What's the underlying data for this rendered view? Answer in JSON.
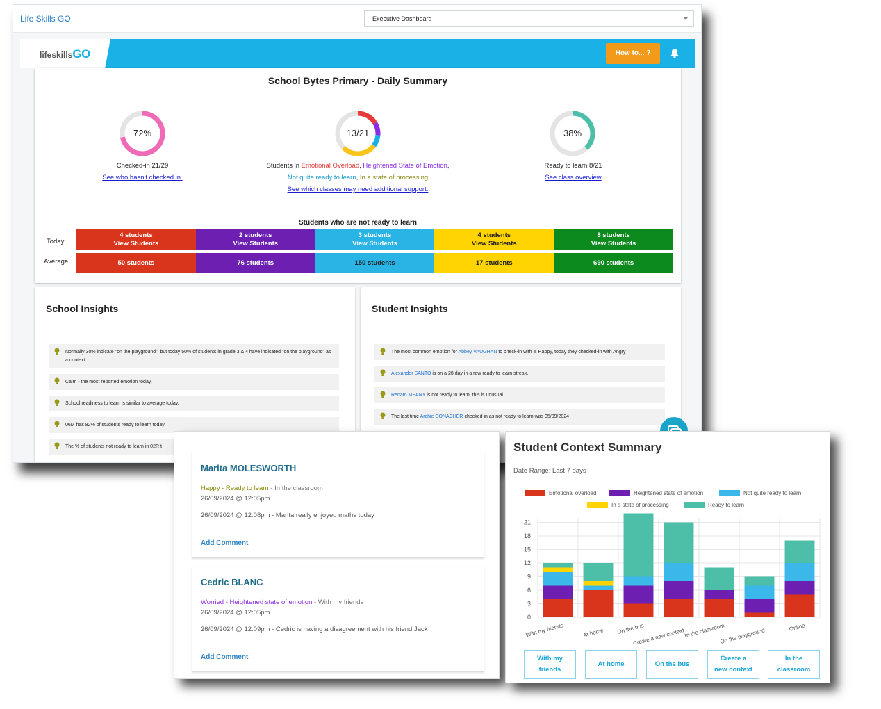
{
  "topbar": {
    "brand": "Life Skills GO",
    "dashboard_select": "Executive Dashboard"
  },
  "navbar": {
    "logo_prefix": "lifeskills",
    "logo_suffix": "GO",
    "howto_label": "How to... ?"
  },
  "summary": {
    "title": "School Bytes Primary - Daily Summary",
    "checked_in": {
      "pct_label": "72%",
      "fraction": 0.72,
      "caption": "Checked-in 21/29",
      "link": "See who hasn't checked in."
    },
    "emotions": {
      "center_label": "13/21",
      "caption_prefix": "Students in ",
      "states": [
        "Emotional Overload",
        "Heightened State of Emotion",
        "Not quite ready to learn",
        "In a state of processing"
      ],
      "link": "See which classes may need additional support."
    },
    "ready": {
      "pct_label": "38%",
      "fraction": 0.38,
      "caption": "Ready to learn 8/21",
      "link": "See class overview"
    },
    "not_ready_title": "Students who are not ready to learn",
    "row_today": "Today",
    "row_average": "Average",
    "today": [
      {
        "count": "4 students",
        "action": "View Students",
        "color": "#d9341c"
      },
      {
        "count": "2 students",
        "action": "View Students",
        "color": "#6c1fb0"
      },
      {
        "count": "3 students",
        "action": "View Students",
        "color": "#2ab4e6"
      },
      {
        "count": "4 students",
        "action": "View Students",
        "color": "#ffd400"
      },
      {
        "count": "8 students",
        "action": "View Students",
        "color": "#0d8a1e"
      }
    ],
    "average": [
      {
        "count": "50 students",
        "color": "#d9341c"
      },
      {
        "count": "76 students",
        "color": "#6c1fb0"
      },
      {
        "count": "150 students",
        "color": "#2ab4e6"
      },
      {
        "count": "17 students",
        "color": "#ffd400"
      },
      {
        "count": "690 students",
        "color": "#0d8a1e"
      }
    ]
  },
  "school_insights": {
    "title": "School Insights",
    "items": [
      "Normally 30% indicate \"on the playground\", but today 50% of students in grade 3 & 4 have indicated \"on the playground\" as a context",
      "Calm - the most reported emotion today.",
      "School readiness to learn is similar to average today.",
      "06M has 82% of students ready to learn today",
      "The % of students not ready to learn in 02R t"
    ]
  },
  "student_insights": {
    "title": "Student Insights",
    "items": [
      {
        "pre": "The most common emotion for ",
        "name": "Abbey VAUGHAN",
        "post": " to check-in with is Happy, today they checked-in with Angry"
      },
      {
        "pre": "",
        "name": "Alexander SANTO",
        "post": " is on a 28 day in a row ready to learn streak."
      },
      {
        "pre": "",
        "name": "Renato MEANY",
        "post": " is not ready to learn, this is unusual"
      },
      {
        "pre": "The last time ",
        "name": "Archie CONACHER",
        "post": " checked in as not ready to learn was 05/09/2024"
      }
    ]
  },
  "comments": [
    {
      "name": "Marita MOLESWORTH",
      "status": "Happy - Ready to learn",
      "context": " - In the classroom",
      "date": "26/09/2024 @ 12:05pm",
      "note": "26/09/2024 @ 12:08pm - Marita really enjoyed maths today",
      "add": "Add Comment"
    },
    {
      "name": "Cedric BLANC",
      "status": "Worried - Heightened state of emotion",
      "context": " - With my friends",
      "date": "26/09/2024 @ 12:05pm",
      "note": "26/09/2024 @ 12:09pm - Cedric is having a disagreement with his friend Jack",
      "add": "Add Comment"
    }
  ],
  "context_summary": {
    "title": "Student Context Summary",
    "range": "Date Range: Last 7 days",
    "buttons": [
      {
        "line1": "With my",
        "line2": "friends"
      },
      {
        "line1": "At home",
        "line2": ""
      },
      {
        "line1": "On the bus",
        "line2": ""
      },
      {
        "line1": "Create a",
        "line2": "new context"
      },
      {
        "line1": "In the",
        "line2": "classroom"
      }
    ]
  },
  "chart_data": {
    "type": "bar",
    "stacked": true,
    "categories": [
      "With my friends",
      "At home",
      "On the bus",
      "Create a new context",
      "In the classroom",
      "On the playground",
      "Online"
    ],
    "series": [
      {
        "name": "Emotional overload",
        "color": "#d9341c",
        "values": [
          4,
          6,
          3,
          4,
          4,
          1,
          5
        ]
      },
      {
        "name": "Heightened state of emotion",
        "color": "#6c1fb0",
        "values": [
          3,
          0,
          4,
          4,
          2,
          3,
          3
        ]
      },
      {
        "name": "Not quite ready to learn",
        "color": "#3bb7ea",
        "values": [
          3,
          1,
          2,
          4,
          0,
          3,
          4
        ]
      },
      {
        "name": "In a state of processing",
        "color": "#ffd400",
        "values": [
          1,
          1,
          0,
          0,
          0,
          0,
          0
        ]
      },
      {
        "name": "Ready to learn",
        "color": "#4dbfa8",
        "values": [
          1,
          4,
          14,
          9,
          5,
          2,
          5
        ]
      }
    ],
    "yticks": [
      0,
      3,
      6,
      9,
      12,
      15,
      18,
      21
    ],
    "ylim": [
      0,
      22
    ],
    "grid": true,
    "legend": "top"
  }
}
